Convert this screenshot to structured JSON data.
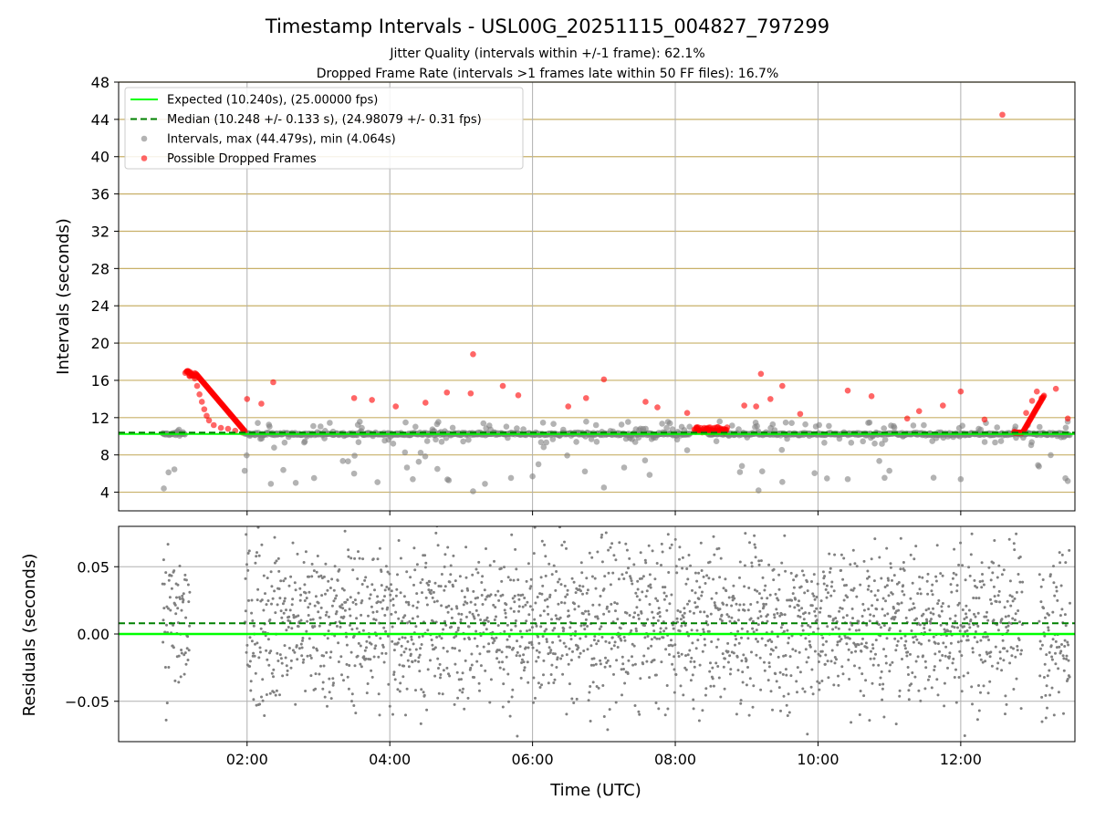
{
  "figure": {
    "title": "Timestamp Intervals - USL00G_20251115_004827_797299",
    "subtitle_line1": "Jitter Quality (intervals within +/-1 frame): 62.1%",
    "subtitle_line2": "Dropped Frame Rate (intervals >1 frames late within 50 FF files): 16.7%",
    "xlabel": "Time (UTC)"
  },
  "colors": {
    "expected": "#00ff00",
    "median": "#008000",
    "intervals": "#808080",
    "dropped": "#ff0000",
    "hgrid": "#c8b068",
    "vgrid": "#b0b0b0"
  },
  "chart_data": [
    {
      "type": "scatter",
      "panel": "intervals",
      "ylabel": "Intervals (seconds)",
      "xlim": [
        "00:12",
        "13:36"
      ],
      "ylim": [
        2.0,
        48.0
      ],
      "x_ticks": [
        "02:00",
        "04:00",
        "06:00",
        "08:00",
        "10:00",
        "12:00"
      ],
      "y_ticks": [
        4,
        8,
        12,
        16,
        20,
        24,
        28,
        32,
        36,
        40,
        44,
        48
      ],
      "grid": true,
      "legend_position": "top-left",
      "legend": [
        {
          "label": "Expected (10.240s), (25.00000 fps)",
          "style": "solid-line",
          "color": "#00ff00"
        },
        {
          "label": "Median (10.248 +/- 0.133 s), (24.98079 +/- 0.31 fps)",
          "style": "dashed-line",
          "color": "#008000"
        },
        {
          "label": "Intervals, max (44.479s), min (4.064s)",
          "style": "marker",
          "color": "#808080"
        },
        {
          "label": "Possible Dropped Frames",
          "style": "marker",
          "color": "#ff0000"
        }
      ],
      "expected_line": 10.24,
      "median_line": 10.248,
      "intervals_max": 44.479,
      "intervals_min": 4.064,
      "dropped_frames": [
        [
          "01:08",
          16.8
        ],
        [
          "01:10",
          17.0
        ],
        [
          "01:12",
          16.9
        ],
        [
          "01:14",
          16.6
        ],
        [
          "01:16",
          16.2
        ],
        [
          "01:18",
          15.4
        ],
        [
          "01:20",
          14.5
        ],
        [
          "01:22",
          13.7
        ],
        [
          "01:24",
          12.9
        ],
        [
          "01:26",
          12.2
        ],
        [
          "01:28",
          11.7
        ],
        [
          "01:32",
          11.2
        ],
        [
          "01:38",
          10.9
        ],
        [
          "01:44",
          10.8
        ],
        [
          "01:50",
          10.6
        ],
        [
          "01:56",
          10.4
        ],
        [
          "02:00",
          14.0
        ],
        [
          "02:12",
          13.5
        ],
        [
          "02:22",
          15.8
        ],
        [
          "03:30",
          14.1
        ],
        [
          "03:45",
          13.9
        ],
        [
          "04:05",
          13.2
        ],
        [
          "04:30",
          13.6
        ],
        [
          "04:48",
          14.7
        ],
        [
          "05:10",
          18.8
        ],
        [
          "05:08",
          14.6
        ],
        [
          "05:35",
          15.4
        ],
        [
          "05:48",
          14.4
        ],
        [
          "06:30",
          13.2
        ],
        [
          "06:45",
          14.1
        ],
        [
          "07:00",
          16.1
        ],
        [
          "07:35",
          13.7
        ],
        [
          "07:45",
          13.1
        ],
        [
          "08:10",
          12.5
        ],
        [
          "08:18",
          10.9
        ],
        [
          "08:26",
          10.8
        ],
        [
          "08:34",
          10.6
        ],
        [
          "08:42",
          10.5
        ],
        [
          "08:58",
          13.3
        ],
        [
          "09:08",
          13.2
        ],
        [
          "09:12",
          16.7
        ],
        [
          "09:20",
          14.0
        ],
        [
          "09:30",
          15.4
        ],
        [
          "09:45",
          12.4
        ],
        [
          "10:25",
          14.9
        ],
        [
          "10:45",
          14.3
        ],
        [
          "11:15",
          11.9
        ],
        [
          "11:25",
          12.7
        ],
        [
          "11:45",
          13.3
        ],
        [
          "12:00",
          14.8
        ],
        [
          "12:20",
          11.8
        ],
        [
          "12:35",
          44.5
        ],
        [
          "12:45",
          10.5
        ],
        [
          "12:55",
          12.5
        ],
        [
          "13:00",
          13.8
        ],
        [
          "13:04",
          14.8
        ],
        [
          "13:08",
          14.1
        ],
        [
          "13:20",
          15.1
        ],
        [
          "13:30",
          11.9
        ]
      ],
      "intervals_sample": [
        [
          "00:50",
          4.4
        ],
        [
          "01:58",
          6.3
        ],
        [
          "02:20",
          4.9
        ],
        [
          "03:30",
          6.0
        ],
        [
          "04:40",
          6.5
        ],
        [
          "05:10",
          4.1
        ],
        [
          "05:20",
          4.9
        ],
        [
          "06:00",
          5.7
        ],
        [
          "07:00",
          4.5
        ],
        [
          "08:10",
          8.5
        ],
        [
          "09:10",
          4.2
        ],
        [
          "09:30",
          5.1
        ],
        [
          "10:25",
          5.4
        ],
        [
          "11:00",
          6.3
        ],
        [
          "12:00",
          5.4
        ],
        [
          "13:05",
          6.9
        ],
        [
          "13:28",
          5.5
        ],
        [
          "13:30",
          5.2
        ]
      ]
    },
    {
      "type": "scatter",
      "panel": "residuals",
      "ylabel": "Residuals (seconds)",
      "xlim": [
        "00:12",
        "13:36"
      ],
      "ylim": [
        -0.08,
        0.08
      ],
      "y_ticks": [
        -0.05,
        0.0,
        0.05
      ],
      "y_tick_labels": [
        "−0.05",
        "0.00",
        "0.05"
      ],
      "x_ticks": [
        "02:00",
        "04:00",
        "06:00",
        "08:00",
        "10:00",
        "12:00"
      ],
      "expected_line": 0.0,
      "median_line": 0.008,
      "point_spread": 0.03,
      "gaps": [
        [
          "01:12",
          "01:58"
        ],
        [
          "12:52",
          "13:06"
        ]
      ]
    }
  ]
}
